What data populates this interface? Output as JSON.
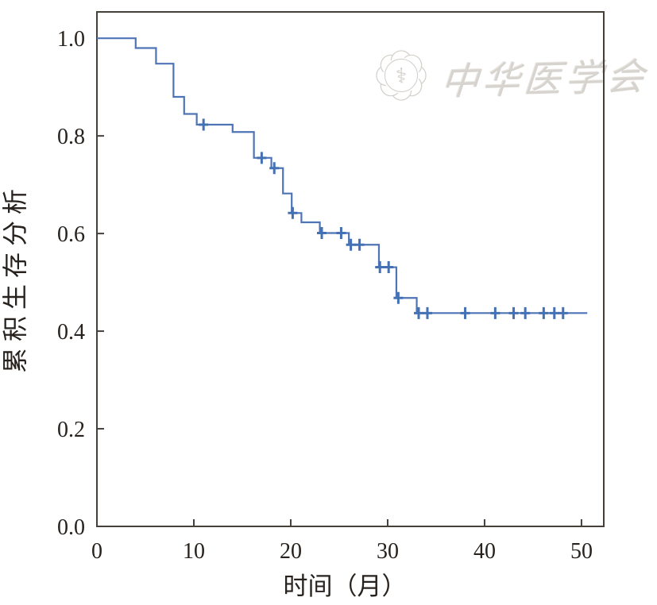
{
  "watermark": {
    "org_name": "中华医学会",
    "emblem": "caduceus-globe-flower-emblem"
  },
  "chart_data": {
    "type": "line",
    "subtype": "kaplan-meier-step-curve",
    "title": "",
    "xlabel": "时间（月）",
    "ylabel": "累积生存分析",
    "x_ticks": [
      0,
      10,
      20,
      30,
      40,
      50
    ],
    "y_ticks": [
      0.0,
      0.2,
      0.4,
      0.6,
      0.8,
      1.0
    ],
    "y_tick_labels": [
      "0.0",
      "0.2",
      "0.4",
      "0.6",
      "0.8",
      "1.0"
    ],
    "xlim": [
      0,
      52.3
    ],
    "ylim": [
      0,
      1.054
    ],
    "grid": false,
    "legend": null,
    "curve_start": {
      "time": 0,
      "survival": 1.0
    },
    "curve_end_time": 50.6,
    "events": [
      {
        "time": 4.0,
        "survival": 0.98
      },
      {
        "time": 6.1,
        "survival": 0.948
      },
      {
        "time": 7.9,
        "survival": 0.88
      },
      {
        "time": 9.0,
        "survival": 0.845
      },
      {
        "time": 10.3,
        "survival": 0.823
      },
      {
        "time": 14.0,
        "survival": 0.808
      },
      {
        "time": 16.2,
        "survival": 0.755
      },
      {
        "time": 18.0,
        "survival": 0.734
      },
      {
        "time": 19.2,
        "survival": 0.682
      },
      {
        "time": 20.1,
        "survival": 0.642
      },
      {
        "time": 21.1,
        "survival": 0.623
      },
      {
        "time": 23.0,
        "survival": 0.601
      },
      {
        "time": 26.0,
        "survival": 0.577
      },
      {
        "time": 29.1,
        "survival": 0.531
      },
      {
        "time": 30.9,
        "survival": 0.468
      },
      {
        "time": 33.0,
        "survival": 0.437
      }
    ],
    "censor_marks": [
      {
        "time": 11.0,
        "survival": 0.823
      },
      {
        "time": 17.0,
        "survival": 0.755
      },
      {
        "time": 18.3,
        "survival": 0.734
      },
      {
        "time": 20.2,
        "survival": 0.642
      },
      {
        "time": 23.2,
        "survival": 0.601
      },
      {
        "time": 25.2,
        "survival": 0.601
      },
      {
        "time": 26.2,
        "survival": 0.577
      },
      {
        "time": 27.1,
        "survival": 0.577
      },
      {
        "time": 29.2,
        "survival": 0.531
      },
      {
        "time": 30.1,
        "survival": 0.531
      },
      {
        "time": 31.1,
        "survival": 0.468
      },
      {
        "time": 33.2,
        "survival": 0.437
      },
      {
        "time": 34.1,
        "survival": 0.437
      },
      {
        "time": 38.0,
        "survival": 0.437
      },
      {
        "time": 41.1,
        "survival": 0.437
      },
      {
        "time": 43.0,
        "survival": 0.437
      },
      {
        "time": 44.2,
        "survival": 0.437
      },
      {
        "time": 46.1,
        "survival": 0.437
      },
      {
        "time": 47.2,
        "survival": 0.437
      },
      {
        "time": 48.1,
        "survival": 0.437
      }
    ],
    "line_color": "#4e74b6",
    "censor_color": "#4470b4",
    "axis_color": "#46403b",
    "text_color": "#27221e"
  }
}
